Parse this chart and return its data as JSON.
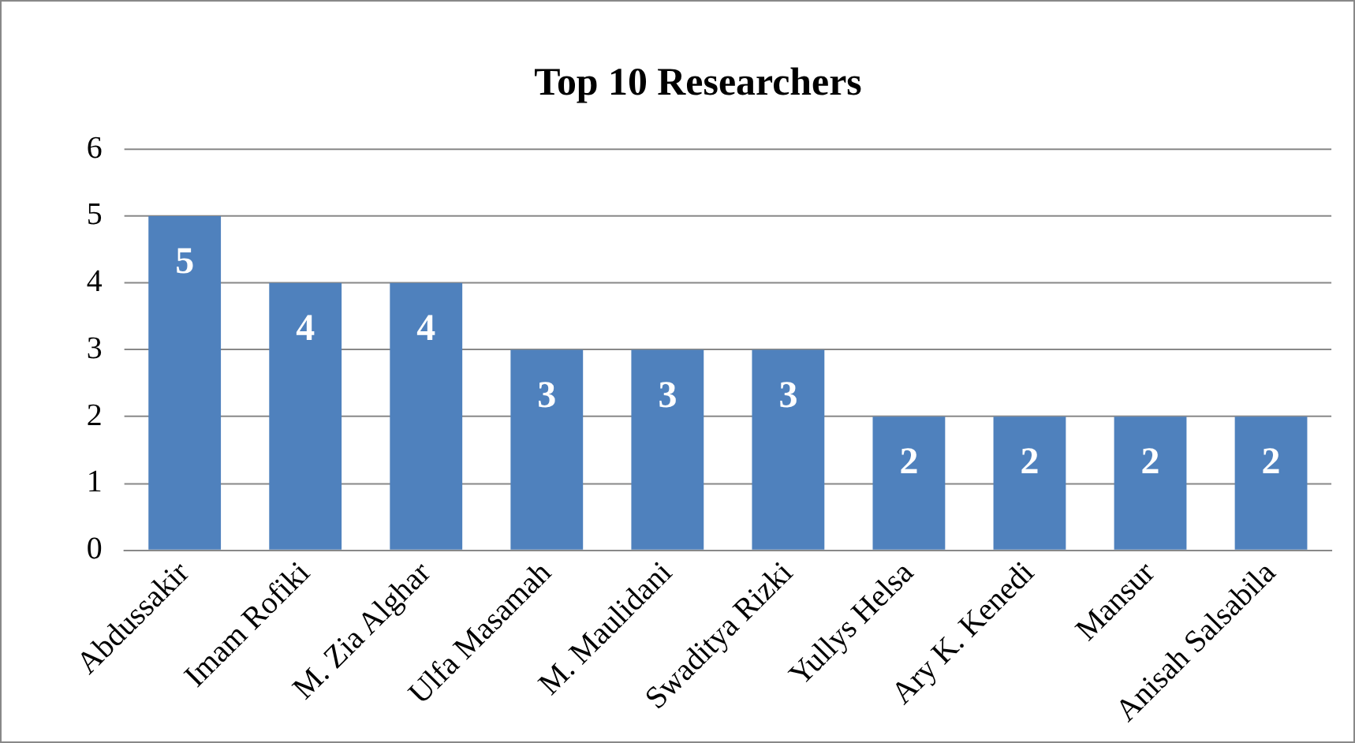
{
  "chart_data": {
    "type": "bar",
    "title": "Top 10 Researchers",
    "categories": [
      "Abdussakir",
      "Imam Rofiki",
      "M. Zia Alghar",
      "Ulfa Masamah",
      "M. Maulidani",
      "Swaditya Rizki",
      "Yullys Helsa",
      "Ary K. Kenedi",
      "Mansur",
      "Anisah Salsabila"
    ],
    "values": [
      5,
      4,
      4,
      3,
      3,
      3,
      2,
      2,
      2,
      2
    ],
    "color": "#4f81bd",
    "ylim": [
      0,
      6
    ],
    "yticks": [
      0,
      1,
      2,
      3,
      4,
      5,
      6
    ],
    "grid": "y",
    "data_labels": true
  }
}
